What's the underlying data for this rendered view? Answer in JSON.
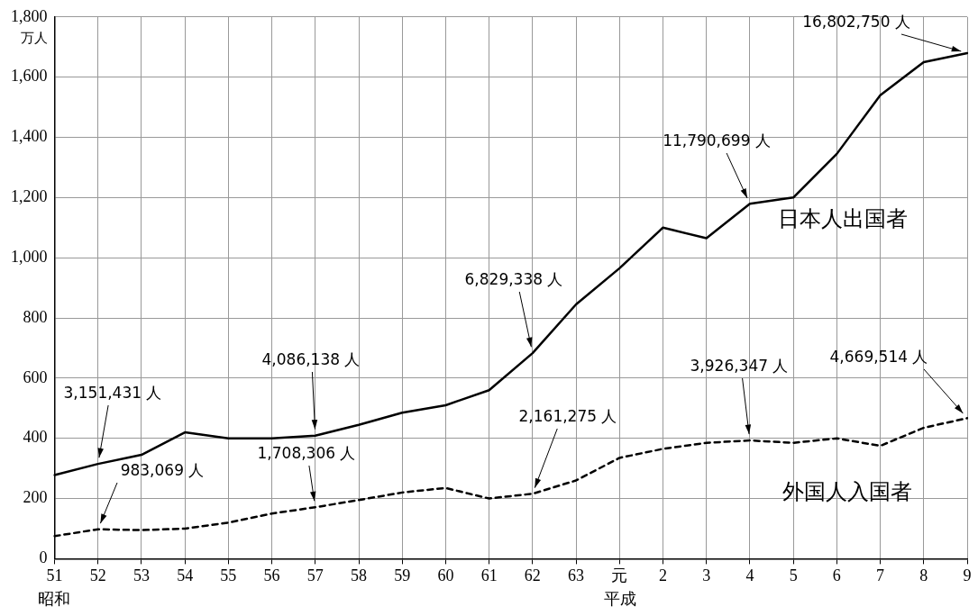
{
  "chart_data": {
    "type": "line",
    "categories": [
      "51",
      "52",
      "53",
      "54",
      "55",
      "56",
      "57",
      "58",
      "59",
      "60",
      "61",
      "62",
      "63",
      "元",
      "2",
      "3",
      "4",
      "5",
      "6",
      "7",
      "8",
      "9"
    ],
    "series": [
      {
        "name": "日本人出国者",
        "color": "#000000",
        "line_style": "solid",
        "values": [
          278,
          315,
          345,
          420,
          400,
          400,
          409,
          445,
          485,
          510,
          560,
          683,
          845,
          965,
          1100,
          1065,
          1179,
          1200,
          1345,
          1540,
          1650,
          1680
        ]
      },
      {
        "name": "外国人入国者",
        "color": "#000000",
        "line_style": "dashed",
        "values": [
          75,
          98,
          95,
          100,
          120,
          150,
          171,
          195,
          220,
          235,
          200,
          216,
          260,
          335,
          365,
          385,
          393,
          385,
          400,
          375,
          435,
          467
        ]
      }
    ],
    "ylabel": "万人",
    "ylim": [
      0,
      1800
    ],
    "yticks": [
      0,
      200,
      400,
      600,
      800,
      {
        "value": 1000,
        "label": "1,000"
      },
      {
        "value": 1200,
        "label": "1,200"
      },
      {
        "value": 1400,
        "label": "1,400"
      },
      {
        "value": 1600,
        "label": "1,600"
      },
      {
        "value": 1800,
        "label": "1,800"
      }
    ],
    "grid": true,
    "legend": false,
    "marker": "none",
    "annotations": [
      {
        "text": "3,151,431 人",
        "x": "52",
        "y": 315
      },
      {
        "text": "983,069 人",
        "x": "52",
        "y": 98
      },
      {
        "text": "4,086,138 人",
        "x": "57",
        "y": 409
      },
      {
        "text": "1,708,306 人",
        "x": "57",
        "y": 171
      },
      {
        "text": "6,829,338 人",
        "x": "62",
        "y": 683
      },
      {
        "text": "2,161,275 人",
        "x": "62",
        "y": 216
      },
      {
        "text": "11,790,699 人",
        "x": "4",
        "y": 1179
      },
      {
        "text": "3,926,347 人",
        "x": "4",
        "y": 393
      },
      {
        "text": "16,802,750 人",
        "x": "9",
        "y": 1680
      },
      {
        "text": "4,669,514 人",
        "x": "9",
        "y": 467
      },
      "昭和",
      "平成"
    ]
  }
}
